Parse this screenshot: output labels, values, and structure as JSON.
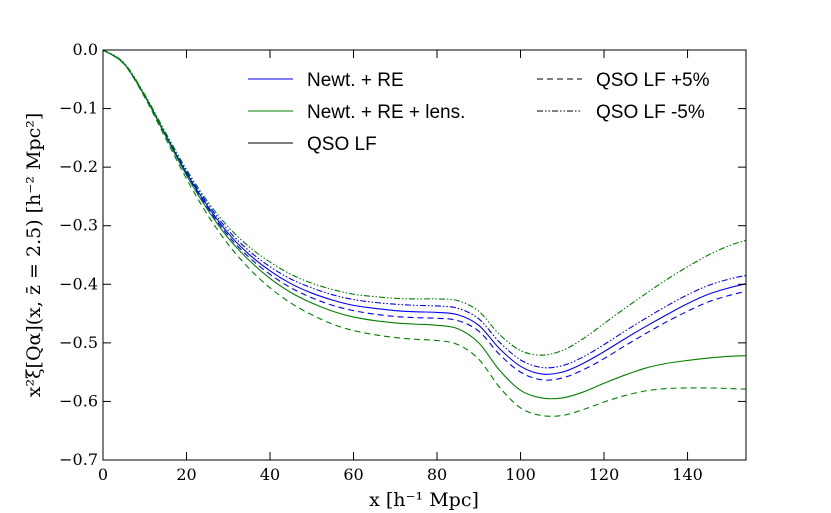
{
  "chart_data": {
    "type": "line",
    "title": "",
    "xlabel": "x [h⁻¹ Mpc]",
    "ylabel": "x²ξ[Qα](x, z̄ = 2.5) [h⁻² Mpc²]",
    "xlim": [
      0,
      154
    ],
    "ylim": [
      -0.7,
      0.0
    ],
    "xticks": [
      0,
      20,
      40,
      60,
      80,
      100,
      120,
      140
    ],
    "yticks": [
      0.0,
      -0.1,
      -0.2,
      -0.3,
      -0.4,
      -0.5,
      -0.6,
      -0.7
    ],
    "xtick_labels": [
      "0",
      "20",
      "40",
      "60",
      "80",
      "100",
      "120",
      "140"
    ],
    "ytick_labels": [
      "0.0",
      "−0.1",
      "−0.2",
      "−0.3",
      "−0.4",
      "−0.5",
      "−0.6",
      "−0.7"
    ],
    "x": [
      0,
      5,
      10,
      15,
      20,
      25,
      30,
      35,
      40,
      45,
      50,
      55,
      60,
      65,
      70,
      75,
      80,
      85,
      90,
      95,
      100,
      105,
      110,
      115,
      120,
      125,
      130,
      135,
      140,
      145,
      150,
      154
    ],
    "series": [
      {
        "name": "Newt. + RE",
        "color": "#0000ff",
        "style": "solid",
        "values": [
          0.0,
          -0.023,
          -0.078,
          -0.145,
          -0.21,
          -0.266,
          -0.313,
          -0.349,
          -0.377,
          -0.399,
          -0.415,
          -0.427,
          -0.436,
          -0.441,
          -0.445,
          -0.447,
          -0.448,
          -0.452,
          -0.47,
          -0.51,
          -0.54,
          -0.553,
          -0.55,
          -0.535,
          -0.515,
          -0.493,
          -0.472,
          -0.452,
          -0.433,
          -0.417,
          -0.406,
          -0.399
        ]
      },
      {
        "name": "Newt. + RE +5%",
        "color": "#0000ff",
        "style": "dashed",
        "values": [
          0.0,
          -0.023,
          -0.078,
          -0.146,
          -0.212,
          -0.269,
          -0.317,
          -0.354,
          -0.383,
          -0.406,
          -0.423,
          -0.436,
          -0.445,
          -0.451,
          -0.455,
          -0.457,
          -0.458,
          -0.462,
          -0.48,
          -0.52,
          -0.55,
          -0.563,
          -0.56,
          -0.546,
          -0.527,
          -0.505,
          -0.484,
          -0.464,
          -0.446,
          -0.43,
          -0.419,
          -0.412
        ]
      },
      {
        "name": "Newt. + RE -5%",
        "color": "#0000ff",
        "style": "dashdot",
        "values": [
          0.0,
          -0.022,
          -0.077,
          -0.143,
          -0.207,
          -0.262,
          -0.308,
          -0.343,
          -0.37,
          -0.391,
          -0.406,
          -0.418,
          -0.426,
          -0.431,
          -0.434,
          -0.436,
          -0.437,
          -0.441,
          -0.459,
          -0.499,
          -0.529,
          -0.542,
          -0.539,
          -0.524,
          -0.503,
          -0.48,
          -0.458,
          -0.437,
          -0.418,
          -0.402,
          -0.391,
          -0.385
        ]
      },
      {
        "name": "Newt. + RE + lens.",
        "color": "#008000",
        "style": "solid",
        "values": [
          0.0,
          -0.023,
          -0.079,
          -0.147,
          -0.214,
          -0.272,
          -0.321,
          -0.359,
          -0.39,
          -0.414,
          -0.432,
          -0.446,
          -0.456,
          -0.462,
          -0.466,
          -0.468,
          -0.47,
          -0.476,
          -0.5,
          -0.547,
          -0.581,
          -0.594,
          -0.594,
          -0.584,
          -0.569,
          -0.555,
          -0.543,
          -0.535,
          -0.53,
          -0.526,
          -0.523,
          -0.522
        ]
      },
      {
        "name": "Newt. + RE + lens. +5%",
        "color": "#008000",
        "style": "dashed",
        "values": [
          0.0,
          -0.024,
          -0.081,
          -0.151,
          -0.22,
          -0.281,
          -0.332,
          -0.373,
          -0.406,
          -0.432,
          -0.452,
          -0.468,
          -0.479,
          -0.486,
          -0.491,
          -0.494,
          -0.496,
          -0.503,
          -0.528,
          -0.576,
          -0.611,
          -0.624,
          -0.624,
          -0.614,
          -0.601,
          -0.59,
          -0.582,
          -0.578,
          -0.577,
          -0.577,
          -0.578,
          -0.579
        ]
      },
      {
        "name": "Newt. + RE + lens. -5%",
        "color": "#008000",
        "style": "dashdot",
        "values": [
          0.0,
          -0.022,
          -0.076,
          -0.141,
          -0.204,
          -0.258,
          -0.302,
          -0.336,
          -0.362,
          -0.383,
          -0.398,
          -0.409,
          -0.417,
          -0.421,
          -0.424,
          -0.425,
          -0.425,
          -0.428,
          -0.446,
          -0.486,
          -0.513,
          -0.521,
          -0.513,
          -0.493,
          -0.467,
          -0.441,
          -0.416,
          -0.392,
          -0.37,
          -0.35,
          -0.334,
          -0.325
        ]
      }
    ],
    "legend": {
      "position": "top",
      "entries": [
        {
          "label": "Newt. + RE",
          "color": "#0000ff",
          "style": "solid"
        },
        {
          "label": "Newt. + RE + lens.",
          "color": "#008000",
          "style": "solid"
        },
        {
          "label": "QSO LF",
          "color": "#000000",
          "style": "solid"
        },
        {
          "label": "QSO LF +5%",
          "color": "#000000",
          "style": "dashed"
        },
        {
          "label": "QSO LF -5%",
          "color": "#000000",
          "style": "dashdot"
        }
      ]
    },
    "grid": false
  }
}
